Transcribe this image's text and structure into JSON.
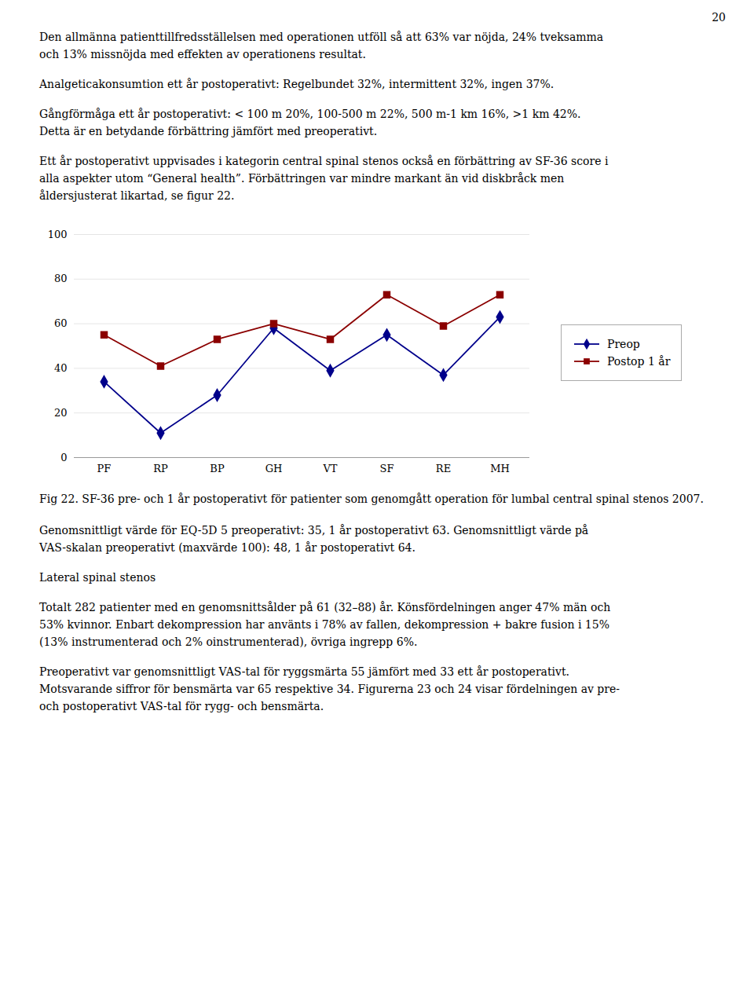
{
  "chart_data": {
    "type": "line",
    "categories": [
      "PF",
      "RP",
      "BP",
      "GH",
      "VT",
      "SF",
      "RE",
      "MH"
    ],
    "series": [
      {
        "name": "Preop",
        "color": "#00008B",
        "marker": "diamond",
        "values": [
          34,
          11,
          28,
          58,
          39,
          55,
          37,
          63
        ]
      },
      {
        "name": "Postop 1 år",
        "color": "#8B0000",
        "marker": "square",
        "values": [
          55,
          41,
          53,
          60,
          53,
          73,
          59,
          73
        ]
      }
    ],
    "ylim": [
      0,
      100
    ],
    "yticks": [
      0,
      20,
      40,
      60,
      80,
      100
    ],
    "grid": true,
    "legend": "right",
    "caption": "Fig 22. SF-36 pre- och 1 år postoperativt för patienter som genomgått operation för lumbal central spinal stenos 2007.",
    "annotations": {
      "page": "20",
      "above": [
        "Den allmänna patienttillfredsställelsen med operationen utföll så att 63% var nöjda, 24% tveksamma\noch 13% missnöjda med effekten av operationens resultat.",
        "Analgeticakonsumtion ett år postoperativt: Regelbundet 32%, intermittent 32%, ingen 37%.",
        "Gångförmåga ett år postoperativt: < 100 m 20%, 100-500 m 22%, 500 m-1 km 16%, >1 km 42%.\nDetta är en betydande förbättring jämfört med preoperativt.",
        "Ett år postoperativt uppvisades i kategorin central spinal stenos också en förbättring av SF-36 score i\nalla aspekter utom “General health”. Förbättringen var mindre markant än vid diskbråck men\nåldersjusterat likartad, se figur 22."
      ],
      "below": [
        "Genomsnittligt värde för EQ-5D 5 preoperativt: 35, 1 år postoperativt 63. Genomsnittligt värde på\nVAS-skalan preoperativt (maxvärde 100): 48, 1 år postoperativt 64.",
        "Lateral spinal stenos",
        "Totalt 282 patienter med en genomsnittsålder på 61 (32–88) år. Könsfördelningen anger 47% män och\n53% kvinnor. Enbart dekompression har använts i 78% av fallen, dekompression + bakre fusion i 15%\n(13% instrumenterad och 2% oinstrumenterad), övriga ingrepp 6%.",
        "Preoperativt var genomsnittligt VAS-tal för ryggsmärta 55 jämfört med 33 ett år postoperativt.\nMotsvarande siffror för bensmärta var 65 respektive 34. Figurerna 23 och 24 visar fördelningen av pre-\noch postoperativt VAS-tal för rygg- och bensmärta."
      ]
    }
  }
}
